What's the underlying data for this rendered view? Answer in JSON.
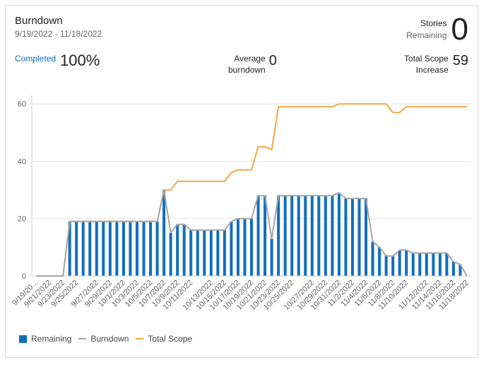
{
  "header": {
    "title": "Burndown",
    "date_range": "9/19/2022 - 11/18/2022",
    "stories_label_1": "Stories",
    "stories_label_2": "Remaining",
    "stories_value": "0",
    "completed_label": "Completed",
    "completed_value": "100%",
    "avg_label_1": "Average",
    "avg_label_2": "burndown",
    "avg_value": "0",
    "scope_label_1": "Total Scope",
    "scope_label_2": "Increase",
    "scope_value": "59"
  },
  "legend": {
    "remaining": "Remaining",
    "burndown": "Burndown",
    "total_scope": "Total Scope"
  },
  "colors": {
    "remaining": "#106ebe",
    "burndown": "#a6a6a6",
    "total_scope": "#f7a541",
    "grid": "#e4e4e4",
    "text": "#666666"
  },
  "chart_data": {
    "type": "bar",
    "x_labels": [
      "9/19/20...",
      "9/21/2022",
      "9/23/2022",
      "9/25/2022",
      "9/27/2022",
      "9/29/2022",
      "10/1/2022",
      "10/3/2022",
      "10/5/2022",
      "10/7/2022",
      "10/9/2022",
      "10/11/2022",
      "10/13/2022",
      "10/15/2022",
      "10/17/2022",
      "10/19/2022",
      "10/21/2022",
      "10/23/2022",
      "10/25/2022",
      "10/27/2022",
      "10/29/2022",
      "10/31/2022",
      "11/2/2022",
      "11/4/2022",
      "11/6/2022",
      "11/8/2022",
      "11/10/2022",
      "11/12/2022",
      "11/14/2022",
      "11/16/2022",
      "11/18/2022"
    ],
    "ylim": [
      0,
      63
    ],
    "yticks": [
      0,
      20,
      40,
      60
    ],
    "grid": "horizontal",
    "legend_position": "bottom-left",
    "series": [
      {
        "name": "Remaining",
        "type": "bar",
        "values": [
          0,
          0,
          0,
          0,
          0,
          19,
          19,
          19,
          19,
          19,
          19,
          19,
          19,
          19,
          19,
          19,
          19,
          19,
          19,
          30,
          15,
          18,
          18,
          16,
          16,
          16,
          16,
          16,
          16,
          19,
          20,
          20,
          20,
          28,
          28,
          13,
          28,
          28,
          28,
          28,
          28,
          28,
          28,
          28,
          28,
          29,
          27,
          27,
          27,
          27,
          12,
          10,
          7,
          7,
          9,
          9,
          8,
          8,
          8,
          8,
          8,
          8,
          5,
          4,
          0
        ]
      },
      {
        "name": "Burndown",
        "type": "line",
        "values": [
          0,
          0,
          0,
          0,
          0,
          19,
          19,
          19,
          19,
          19,
          19,
          19,
          19,
          19,
          19,
          19,
          19,
          19,
          19,
          30,
          15,
          18,
          18,
          16,
          16,
          16,
          16,
          16,
          16,
          19,
          20,
          20,
          20,
          28,
          28,
          13,
          28,
          28,
          28,
          28,
          28,
          28,
          28,
          28,
          28,
          29,
          27,
          27,
          27,
          27,
          12,
          10,
          7,
          7,
          9,
          9,
          8,
          8,
          8,
          8,
          8,
          8,
          5,
          4,
          0
        ]
      },
      {
        "name": "Total Scope",
        "type": "line",
        "values": [
          0,
          0,
          0,
          0,
          0,
          19,
          19,
          19,
          19,
          19,
          19,
          19,
          19,
          19,
          19,
          19,
          19,
          19,
          19,
          30,
          30,
          33,
          33,
          33,
          33,
          33,
          33,
          33,
          33,
          36,
          37,
          37,
          37,
          45,
          45,
          44,
          59,
          59,
          59,
          59,
          59,
          59,
          59,
          59,
          59,
          60,
          60,
          60,
          60,
          60,
          60,
          60,
          60,
          57,
          57,
          59,
          59,
          59,
          59,
          59,
          59,
          59,
          59,
          59,
          59
        ]
      }
    ]
  }
}
